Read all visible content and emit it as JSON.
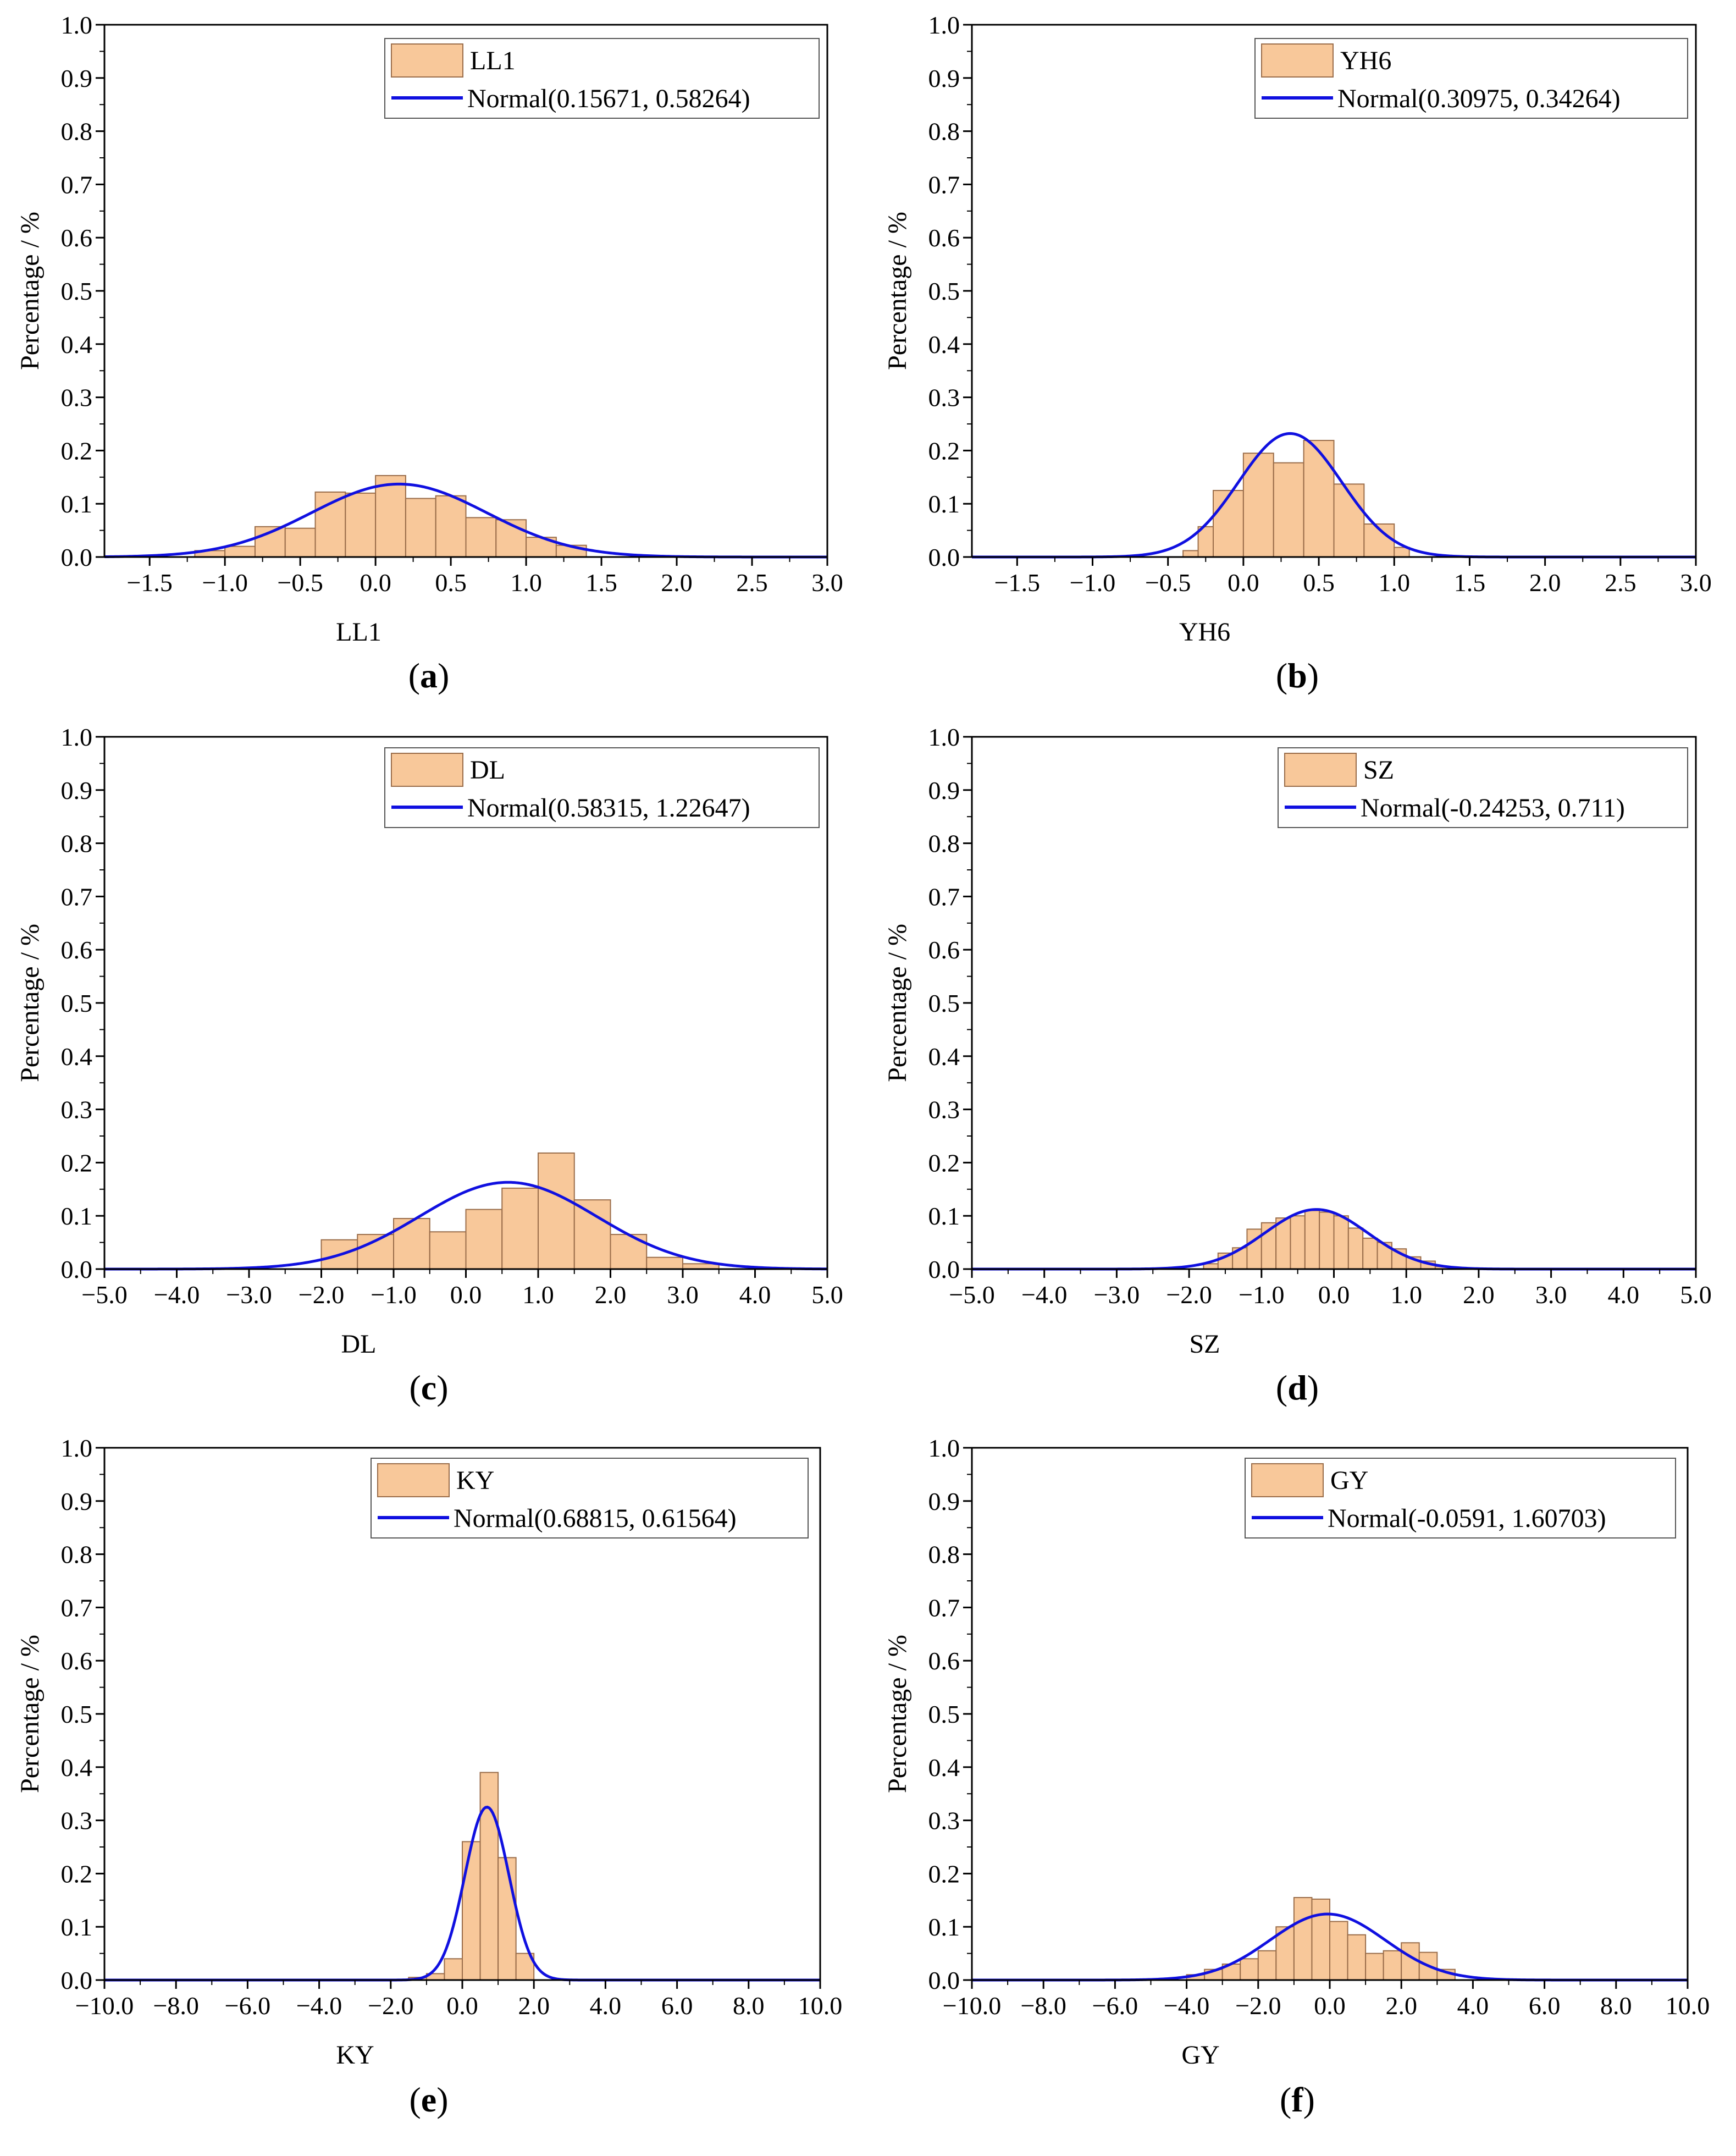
{
  "figure": {
    "background": "#ffffff"
  },
  "style": {
    "bar_fill": "#f8c89a",
    "bar_stroke": "#9a6d4a",
    "curve_color": "#1010e0",
    "axis_color": "#000000"
  },
  "chart_data": [
    {
      "panel": "a",
      "type": "bar",
      "title": "",
      "xlabel": "LL1",
      "ylabel": "Percentage / %",
      "xlim": [
        -1.8,
        3.0
      ],
      "ylim": [
        0,
        1.0
      ],
      "x_ticks": [
        -1.5,
        -1.0,
        -0.5,
        0.0,
        0.5,
        1.0,
        1.5,
        2.0,
        2.5,
        3.0
      ],
      "x_tick_labels": [
        "−1.5",
        "−1.0",
        "−0.5",
        "0.0",
        "0.5",
        "1.0",
        "1.5",
        "2.0",
        "2.5",
        "3.0"
      ],
      "y_ticks": [
        0.0,
        0.1,
        0.2,
        0.3,
        0.4,
        0.5,
        0.6,
        0.7,
        0.8,
        0.9,
        1.0
      ],
      "y_tick_labels": [
        "0.0",
        "0.1",
        "0.2",
        "0.3",
        "0.4",
        "0.5",
        "0.6",
        "0.7",
        "0.8",
        "0.9",
        "1.0"
      ],
      "bin_width": 0.2,
      "bin_starts": [
        -1.2,
        -1.0,
        -0.8,
        -0.6,
        -0.4,
        -0.2,
        0.0,
        0.2,
        0.4,
        0.6,
        0.8,
        1.0,
        1.2
      ],
      "values": [
        0.012,
        0.02,
        0.057,
        0.054,
        0.122,
        0.12,
        0.153,
        0.11,
        0.115,
        0.074,
        0.07,
        0.037,
        0.022
      ],
      "fit": {
        "mean": 0.15671,
        "sd": 0.58264,
        "peak": 0.137
      },
      "legend": {
        "hist_label": "LL1",
        "fit_label": "Normal(0.15671, 0.58264)",
        "placement": "top-right"
      }
    },
    {
      "panel": "b",
      "type": "bar",
      "title": "",
      "xlabel": "YH6",
      "ylabel": "Percentage / %",
      "xlim": [
        -1.8,
        3.0
      ],
      "ylim": [
        0,
        1.0
      ],
      "x_ticks": [
        -1.5,
        -1.0,
        -0.5,
        0.0,
        0.5,
        1.0,
        1.5,
        2.0,
        2.5,
        3.0
      ],
      "x_tick_labels": [
        "−1.5",
        "−1.0",
        "−0.5",
        "0.0",
        "0.5",
        "1.0",
        "1.5",
        "2.0",
        "2.5",
        "3.0"
      ],
      "y_ticks": [
        0.0,
        0.1,
        0.2,
        0.3,
        0.4,
        0.5,
        0.6,
        0.7,
        0.8,
        0.9,
        1.0
      ],
      "y_tick_labels": [
        "0.0",
        "0.1",
        "0.2",
        "0.3",
        "0.4",
        "0.5",
        "0.6",
        "0.7",
        "0.8",
        "0.9",
        "1.0"
      ],
      "bin_width": 0.2,
      "bin_starts": [
        -0.4,
        -0.3,
        -0.2,
        0.0,
        0.2,
        0.4,
        0.6,
        0.8,
        1.0
      ],
      "bin_widths": [
        0.1,
        0.1,
        0.2,
        0.2,
        0.2,
        0.2,
        0.2,
        0.2,
        0.1
      ],
      "values": [
        0.012,
        0.057,
        0.125,
        0.195,
        0.177,
        0.219,
        0.137,
        0.062,
        0.018
      ],
      "fit": {
        "mean": 0.30975,
        "sd": 0.34264,
        "peak": 0.232
      },
      "legend": {
        "hist_label": "YH6",
        "fit_label": "Normal(0.30975, 0.34264)",
        "placement": "top-right"
      }
    },
    {
      "panel": "c",
      "type": "bar",
      "title": "",
      "xlabel": "DL",
      "ylabel": "Percentage / %",
      "xlim": [
        -5.0,
        5.0
      ],
      "ylim": [
        0,
        1.0
      ],
      "x_ticks": [
        -5,
        -4,
        -3,
        -2,
        -1,
        0,
        1,
        2,
        3,
        4,
        5
      ],
      "x_tick_labels": [
        "−5.0",
        "−4.0",
        "−3.0",
        "−2.0",
        "−1.0",
        "0.0",
        "1.0",
        "2.0",
        "3.0",
        "4.0",
        "5.0"
      ],
      "y_ticks": [
        0.0,
        0.1,
        0.2,
        0.3,
        0.4,
        0.5,
        0.6,
        0.7,
        0.8,
        0.9,
        1.0
      ],
      "y_tick_labels": [
        "0.0",
        "0.1",
        "0.2",
        "0.3",
        "0.4",
        "0.5",
        "0.6",
        "0.7",
        "0.8",
        "0.9",
        "1.0"
      ],
      "bin_width": 0.5,
      "bin_starts": [
        -2.0,
        -1.5,
        -1.0,
        -0.5,
        0.0,
        0.5,
        1.0,
        1.5,
        2.0,
        2.5,
        3.0
      ],
      "values": [
        0.055,
        0.065,
        0.095,
        0.07,
        0.112,
        0.152,
        0.218,
        0.13,
        0.065,
        0.022,
        0.01
      ],
      "fit": {
        "mean": 0.58315,
        "sd": 1.22647,
        "peak": 0.163
      },
      "legend": {
        "hist_label": "DL",
        "fit_label": "Normal(0.58315, 1.22647)",
        "placement": "top-right"
      }
    },
    {
      "panel": "d",
      "type": "bar",
      "title": "",
      "xlabel": "SZ",
      "ylabel": "Percentage / %",
      "xlim": [
        -5.0,
        5.0
      ],
      "ylim": [
        0,
        1.0
      ],
      "x_ticks": [
        -5,
        -4,
        -3,
        -2,
        -1,
        0,
        1,
        2,
        3,
        4,
        5
      ],
      "x_tick_labels": [
        "−5.0",
        "−4.0",
        "−3.0",
        "−2.0",
        "−1.0",
        "0.0",
        "1.0",
        "2.0",
        "3.0",
        "4.0",
        "5.0"
      ],
      "y_ticks": [
        0.0,
        0.1,
        0.2,
        0.3,
        0.4,
        0.5,
        0.6,
        0.7,
        0.8,
        0.9,
        1.0
      ],
      "y_tick_labels": [
        "0.0",
        "0.1",
        "0.2",
        "0.3",
        "0.4",
        "0.5",
        "0.6",
        "0.7",
        "0.8",
        "0.9",
        "1.0"
      ],
      "bin_width": 0.2,
      "bin_starts": [
        -1.8,
        -1.6,
        -1.4,
        -1.2,
        -1.0,
        -0.8,
        -0.6,
        -0.4,
        -0.2,
        0.0,
        0.2,
        0.4,
        0.6,
        0.8,
        1.0,
        1.2,
        1.4
      ],
      "values": [
        0.01,
        0.03,
        0.04,
        0.075,
        0.087,
        0.096,
        0.1,
        0.11,
        0.107,
        0.1,
        0.077,
        0.058,
        0.05,
        0.038,
        0.023,
        0.015,
        0.005
      ],
      "fit": {
        "mean": -0.24253,
        "sd": 0.711,
        "peak": 0.112
      },
      "legend": {
        "hist_label": "SZ",
        "fit_label": "Normal(-0.24253, 0.711)",
        "placement": "top-right"
      }
    },
    {
      "panel": "e",
      "type": "bar",
      "title": "",
      "xlabel": "KY",
      "ylabel": "Percentage / %",
      "xlim": [
        -10,
        10
      ],
      "ylim": [
        0,
        1.0
      ],
      "x_ticks": [
        -10,
        -8,
        -6,
        -4,
        -2,
        0,
        2,
        4,
        6,
        8,
        10
      ],
      "x_tick_labels": [
        "−10.0",
        "−8.0",
        "−6.0",
        "−4.0",
        "−2.0",
        "0.0",
        "2.0",
        "4.0",
        "6.0",
        "8.0",
        "10.0"
      ],
      "y_ticks": [
        0.0,
        0.1,
        0.2,
        0.3,
        0.4,
        0.5,
        0.6,
        0.7,
        0.8,
        0.9,
        1.0
      ],
      "y_tick_labels": [
        "0.0",
        "0.1",
        "0.2",
        "0.3",
        "0.4",
        "0.5",
        "0.6",
        "0.7",
        "0.8",
        "0.9",
        "1.0"
      ],
      "bin_width": 0.5,
      "bin_starts": [
        -1.5,
        -1.0,
        -0.5,
        0.0,
        0.5,
        1.0,
        1.5
      ],
      "values": [
        0.005,
        0.012,
        0.04,
        0.26,
        0.39,
        0.23,
        0.05
      ],
      "fit": {
        "mean": 0.68815,
        "sd": 0.61564,
        "peak": 0.325
      },
      "legend": {
        "hist_label": "KY",
        "fit_label": "Normal(0.68815, 0.61564)",
        "placement": "top-right"
      }
    },
    {
      "panel": "f",
      "type": "bar",
      "title": "",
      "xlabel": "GY",
      "ylabel": "Percentage / %",
      "xlim": [
        -10,
        10
      ],
      "ylim": [
        0,
        1.0
      ],
      "x_ticks": [
        -10,
        -8,
        -6,
        -4,
        -2,
        0,
        2,
        4,
        6,
        8,
        10
      ],
      "x_tick_labels": [
        "−10.0",
        "−8.0",
        "−6.0",
        "−4.0",
        "−2.0",
        "0.0",
        "2.0",
        "4.0",
        "6.0",
        "8.0",
        "10.0"
      ],
      "y_ticks": [
        0.0,
        0.1,
        0.2,
        0.3,
        0.4,
        0.5,
        0.6,
        0.7,
        0.8,
        0.9,
        1.0
      ],
      "y_tick_labels": [
        "0.0",
        "0.1",
        "0.2",
        "0.3",
        "0.4",
        "0.5",
        "0.6",
        "0.7",
        "0.8",
        "0.9",
        "1.0"
      ],
      "bin_width": 0.5,
      "bin_starts": [
        -4.0,
        -3.5,
        -3.0,
        -2.5,
        -2.0,
        -1.5,
        -1.0,
        -0.5,
        0.0,
        0.5,
        1.0,
        1.5,
        2.0,
        2.5,
        3.0
      ],
      "values": [
        0.01,
        0.02,
        0.03,
        0.04,
        0.055,
        0.1,
        0.155,
        0.152,
        0.11,
        0.085,
        0.05,
        0.055,
        0.07,
        0.052,
        0.02
      ],
      "fit": {
        "mean": -0.0591,
        "sd": 1.60703,
        "peak": 0.124
      },
      "legend": {
        "hist_label": "GY",
        "fit_label": "Normal(-0.0591, 1.60703)",
        "placement": "top-right"
      }
    }
  ],
  "panel_labels": [
    {
      "open": "(",
      "letter": "a",
      "close": ")"
    },
    {
      "open": "(",
      "letter": "b",
      "close": ")"
    },
    {
      "open": "(",
      "letter": "c",
      "close": ")"
    },
    {
      "open": "(",
      "letter": "d",
      "close": ")"
    },
    {
      "open": "(",
      "letter": "e",
      "close": ")"
    },
    {
      "open": "(",
      "letter": "f",
      "close": ")"
    }
  ]
}
